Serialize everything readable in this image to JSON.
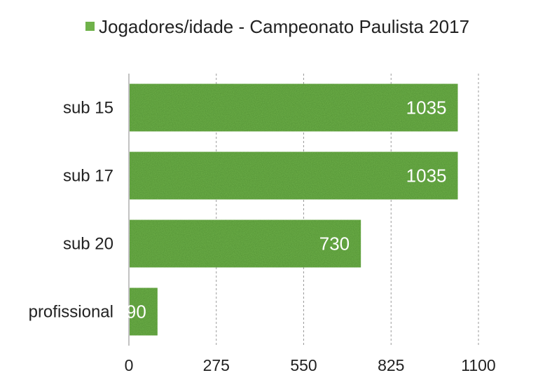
{
  "chart_data": {
    "type": "bar",
    "orientation": "horizontal",
    "legend": {
      "position": "top",
      "entries": [
        "Jogadores/idade - Campeonato Paulista 2017"
      ]
    },
    "categories": [
      "sub 15",
      "sub 17",
      "sub 20",
      "profissional"
    ],
    "series": [
      {
        "name": "Jogadores/idade - Campeonato Paulista 2017",
        "values": [
          1035,
          1035,
          730,
          90
        ],
        "color": "#6fb24a"
      }
    ],
    "xlim": [
      0,
      1100
    ],
    "xticks": [
      0,
      275,
      550,
      825,
      1100
    ],
    "xtick_labels": [
      "0",
      "275",
      "550",
      "825",
      "1100"
    ],
    "grid": "vertical dashed",
    "data_labels": true
  }
}
